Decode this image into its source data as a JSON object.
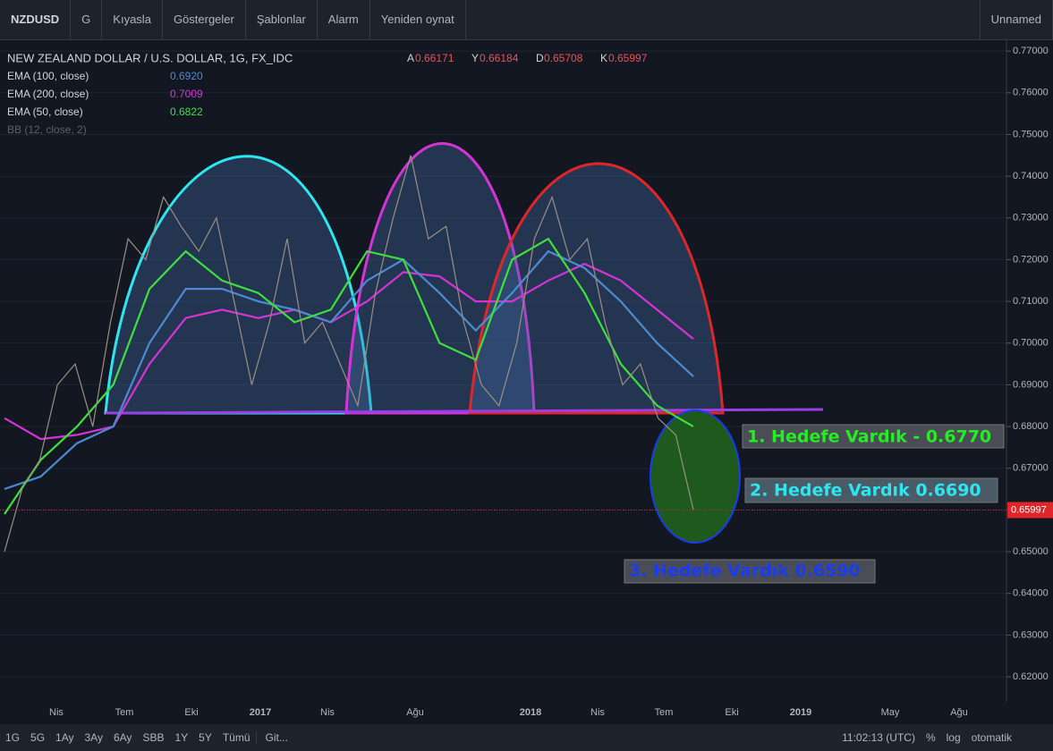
{
  "toolbar": {
    "symbol": "NZDUSD",
    "interval": "G",
    "items": [
      "Kıyasla",
      "Göstergeler",
      "Şablonlar",
      "Alarm",
      "Yeniden oynat"
    ],
    "layout": "Unnamed"
  },
  "legend": {
    "title": "NEW ZEALAND DOLLAR / U.S. DOLLAR, 1G, FX_IDC",
    "ohlc": [
      {
        "key": "A",
        "value": "0.66171"
      },
      {
        "key": "Y",
        "value": "0.66184"
      },
      {
        "key": "D",
        "value": "0.65708"
      },
      {
        "key": "K",
        "value": "0.65997"
      }
    ],
    "indicators": [
      {
        "name": "EMA (100, close)",
        "value": "0.6920",
        "color": "#4c8bd1"
      },
      {
        "name": "EMA (200, close)",
        "value": "0.7009",
        "color": "#d633d6"
      },
      {
        "name": "EMA (50, close)",
        "value": "0.6822",
        "color": "#3ee03e"
      },
      {
        "name": "BB (12, close, 2)",
        "color": "#5d606b"
      }
    ]
  },
  "chart": {
    "type": "line",
    "ylim": [
      0.614,
      0.7726
    ],
    "yticks": [
      {
        "value": 0.77,
        "label": "0.77000"
      },
      {
        "value": 0.76,
        "label": "0.76000"
      },
      {
        "value": 0.75,
        "label": "0.75000"
      },
      {
        "value": 0.74,
        "label": "0.74000"
      },
      {
        "value": 0.73,
        "label": "0.73000"
      },
      {
        "value": 0.72,
        "label": "0.72000"
      },
      {
        "value": 0.71,
        "label": "0.71000"
      },
      {
        "value": 0.7,
        "label": "0.70000"
      },
      {
        "value": 0.69,
        "label": "0.69000"
      },
      {
        "value": 0.68,
        "label": "0.68000"
      },
      {
        "value": 0.67,
        "label": "0.67000"
      },
      {
        "value": 0.66,
        "label": "0.66000"
      },
      {
        "value": 0.65,
        "label": "0.65000"
      },
      {
        "value": 0.64,
        "label": "0.64000"
      },
      {
        "value": 0.63,
        "label": "0.63000"
      },
      {
        "value": 0.62,
        "label": "0.62000"
      }
    ],
    "xlabels": [
      "Nis",
      "Tem",
      "Eki",
      "2017",
      "Nis",
      "Ağu",
      "2018",
      "Nis",
      "Tem",
      "Eki",
      "2019",
      "May",
      "Ağu"
    ],
    "last_price": {
      "value": 0.65997,
      "label": "0.65997"
    },
    "series": [
      {
        "color": "#9a8f86",
        "values": [
          0.65,
          0.665,
          0.672,
          0.69,
          0.695,
          0.68,
          0.705,
          0.725,
          0.72,
          0.735,
          0.728,
          0.722,
          0.73,
          0.71,
          0.69,
          0.705,
          0.725,
          0.7,
          0.705,
          0.695,
          0.685,
          0.712,
          0.73,
          0.745,
          0.725,
          0.728,
          0.705,
          0.69,
          0.685,
          0.7,
          0.725,
          0.735,
          0.72,
          0.725,
          0.705,
          0.69,
          0.695,
          0.682,
          0.678,
          0.66
        ]
      },
      {
        "color": "#3ee03e",
        "values": [
          0.659,
          0.672,
          0.68,
          0.69,
          0.713,
          0.722,
          0.715,
          0.712,
          0.705,
          0.708,
          0.722,
          0.72,
          0.7,
          0.696,
          0.72,
          0.725,
          0.712,
          0.695,
          0.685,
          0.68
        ]
      },
      {
        "color": "#4c8bd1",
        "values": [
          0.665,
          0.668,
          0.676,
          0.68,
          0.7,
          0.713,
          0.713,
          0.71,
          0.708,
          0.705,
          0.715,
          0.72,
          0.712,
          0.703,
          0.712,
          0.722,
          0.718,
          0.71,
          0.7,
          0.692
        ]
      },
      {
        "color": "#d633d6",
        "values": [
          0.682,
          0.677,
          0.678,
          0.68,
          0.695,
          0.706,
          0.708,
          0.706,
          0.708,
          0.705,
          0.71,
          0.717,
          0.716,
          0.71,
          0.71,
          0.715,
          0.719,
          0.715,
          0.708,
          0.701
        ]
      }
    ]
  },
  "annotations": [
    "1. Hedefe Vardık - 0.6770",
    "2. Hedefe Vardık 0.6690",
    "3. Hedefe Vardık 0.6590"
  ],
  "bottom": {
    "ranges": [
      "1G",
      "5G",
      "1Ay",
      "3Ay",
      "6Ay",
      "SBB",
      "1Y",
      "5Y",
      "Tümü"
    ],
    "goto": "Git...",
    "time": "11:02:13 (UTC)",
    "percent": "%",
    "log": "log",
    "auto": "otomatik"
  }
}
